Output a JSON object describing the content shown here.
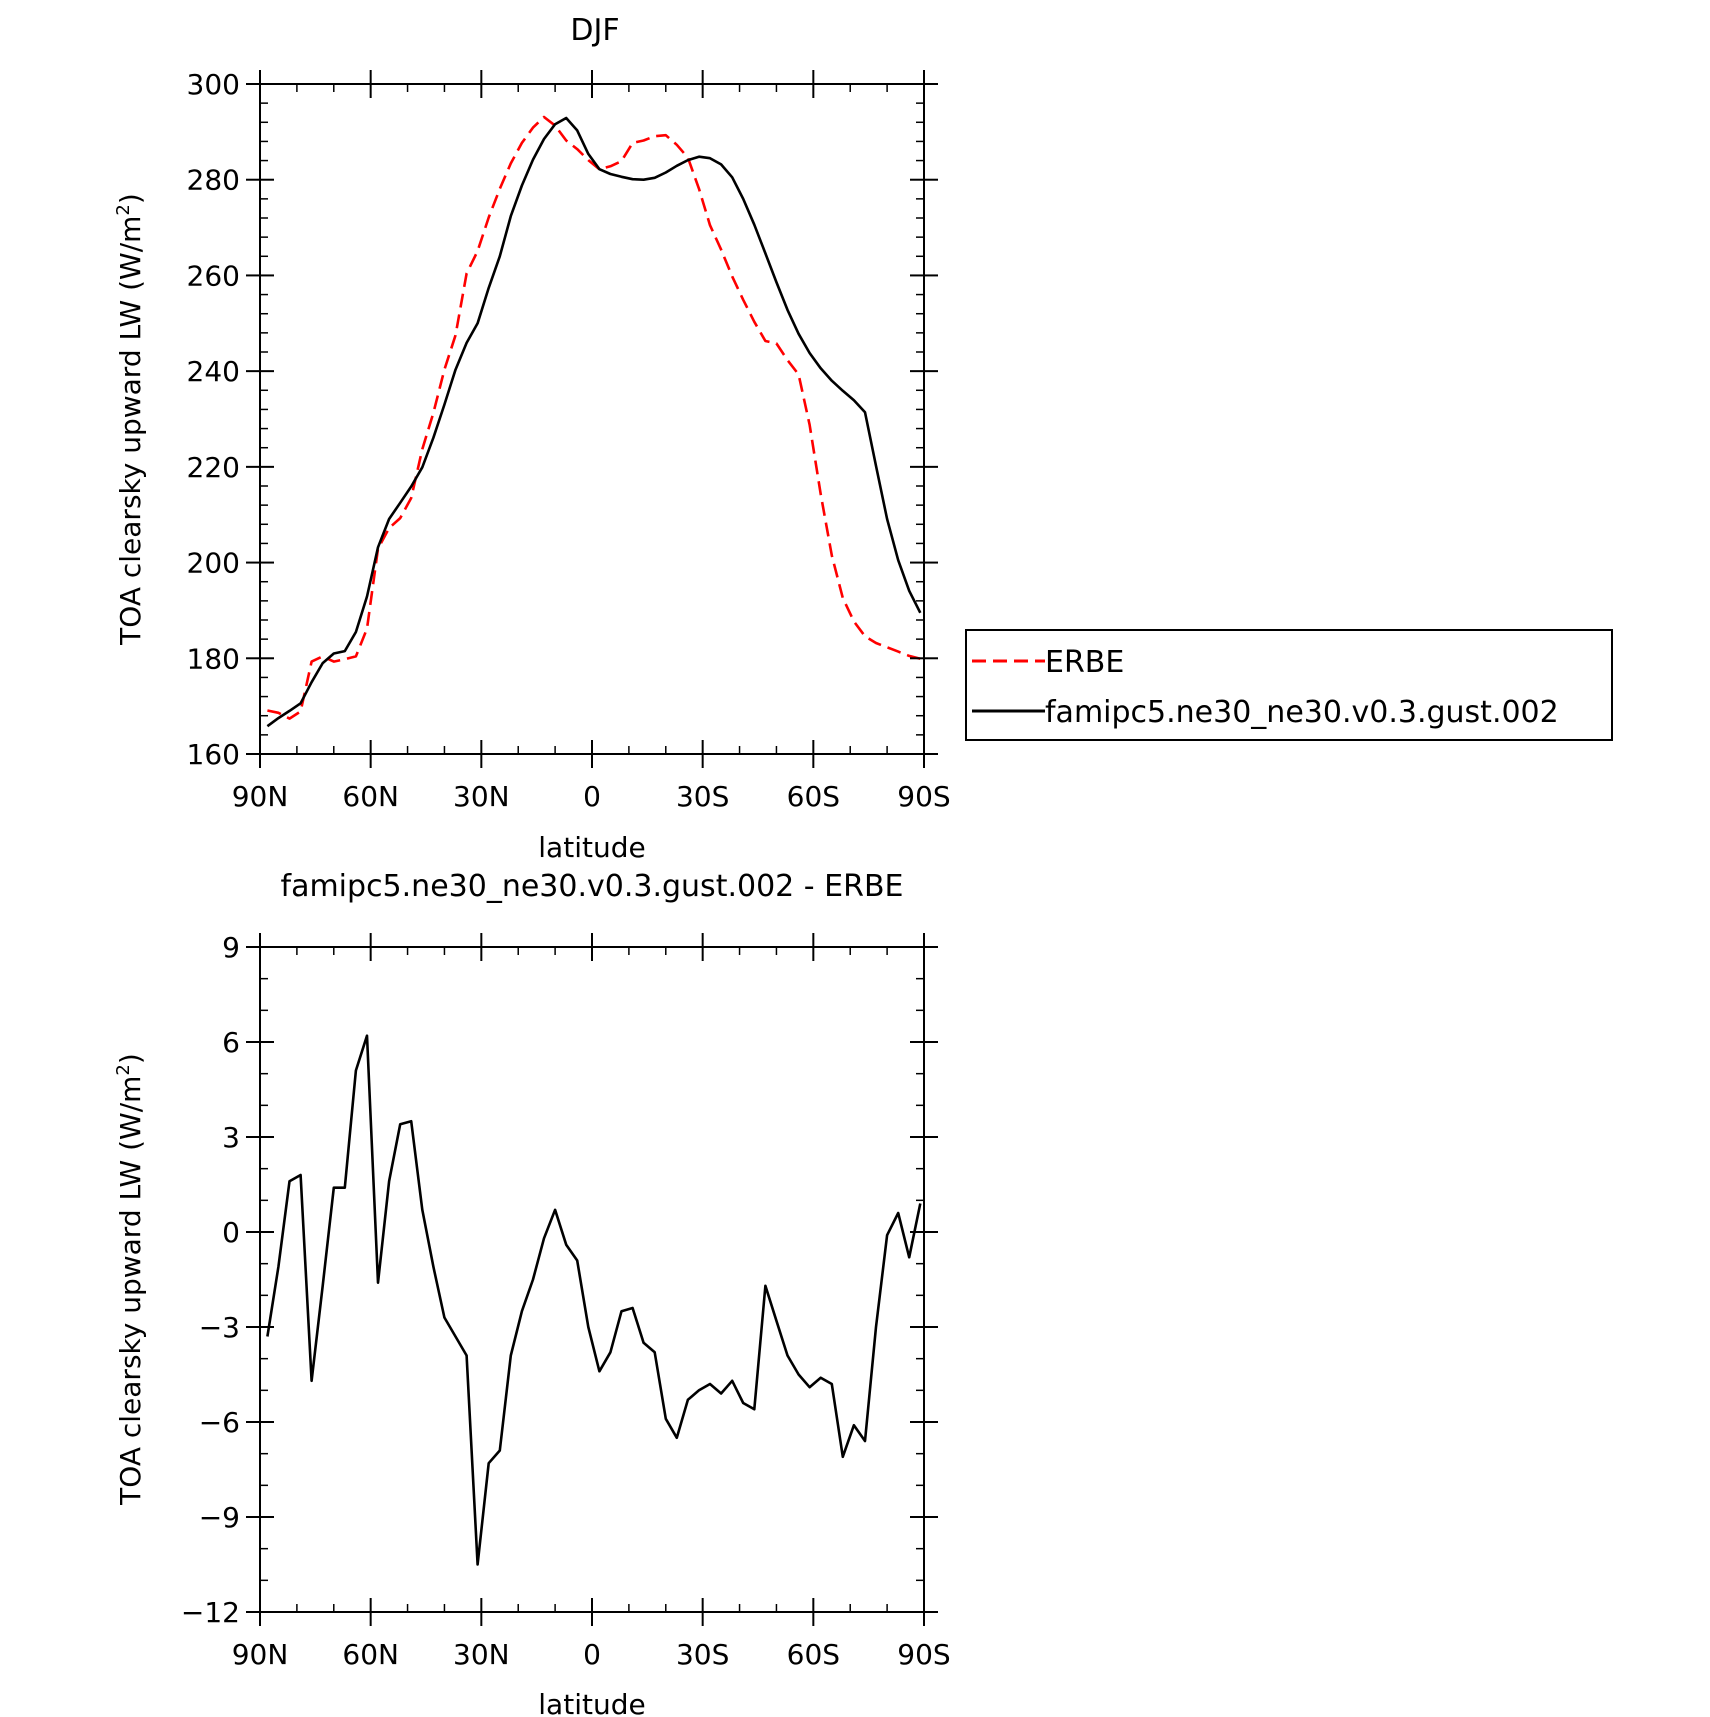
{
  "chart_data": [
    {
      "type": "line",
      "title": "DJF",
      "xlabel": "latitude",
      "ylabel_main": "TOA clearsky upward LW (W/m",
      "ylabel_sup": "2",
      "ylabel_close": ")",
      "xlim": [
        90,
        -90
      ],
      "ylim": [
        160,
        300
      ],
      "x_ticks": [
        90,
        60,
        30,
        0,
        -30,
        -60,
        -90
      ],
      "x_tick_labels": [
        "90N",
        "60N",
        "30N",
        "0",
        "30S",
        "60S",
        "90S"
      ],
      "y_ticks": [
        160,
        180,
        200,
        220,
        240,
        260,
        280,
        300
      ],
      "y_tick_labels": [
        "160",
        "180",
        "200",
        "220",
        "240",
        "260",
        "280",
        "300"
      ],
      "legend": "right",
      "series": [
        {
          "name": "ERBE",
          "color": "#ff0000",
          "dash": "dashed",
          "x": [
            88,
            85,
            82,
            79,
            76,
            73,
            70,
            67,
            64,
            61,
            58,
            55,
            52,
            49,
            46,
            43,
            40,
            37,
            34,
            31,
            28,
            25,
            22,
            19,
            16,
            13,
            10,
            7,
            4,
            1,
            -2,
            -5,
            -8,
            -11,
            -14,
            -17,
            -20,
            -23,
            -26,
            -29,
            -32,
            -35,
            -38,
            -41,
            -44,
            -47,
            -50,
            -53,
            -56,
            -59,
            -62,
            -65,
            -68,
            -71,
            -74,
            -77,
            -80,
            -83,
            -86,
            -89
          ],
          "y": [
            169.1,
            168.6,
            167.4,
            168.9,
            179.3,
            180.4,
            179.3,
            179.8,
            180.4,
            186.2,
            202.9,
            207.2,
            209.3,
            213.5,
            223.7,
            231.3,
            240.3,
            247.5,
            260.4,
            265.1,
            272.1,
            278.1,
            283.4,
            287.7,
            290.9,
            293.1,
            291.3,
            288.2,
            286.4,
            284.1,
            282.2,
            282.8,
            283.9,
            287.7,
            288.2,
            289.1,
            289.3,
            287.3,
            284.6,
            278.1,
            270.5,
            265.4,
            259.8,
            254.9,
            250.3,
            246.3,
            245.8,
            242.3,
            239.3,
            228.8,
            214.3,
            201.5,
            192.6,
            187.7,
            184.6,
            183.2,
            182.3,
            181.4,
            180.5,
            179.9
          ]
        },
        {
          "name": "famipc5.ne30_ne30.v0.3.gust.002",
          "color": "#000000",
          "dash": "solid",
          "x": [
            88,
            85,
            82,
            79,
            76,
            73,
            70,
            67,
            64,
            61,
            58,
            55,
            52,
            49,
            46,
            43,
            40,
            37,
            34,
            31,
            28,
            25,
            22,
            19,
            16,
            13,
            10,
            7,
            4,
            1,
            -2,
            -5,
            -8,
            -11,
            -14,
            -17,
            -20,
            -23,
            -26,
            -29,
            -32,
            -35,
            -38,
            -41,
            -44,
            -47,
            -50,
            -53,
            -56,
            -59,
            -62,
            -65,
            -68,
            -71,
            -74,
            -77,
            -80,
            -83,
            -86,
            -89
          ],
          "y": [
            165.8,
            167.5,
            169.0,
            170.6,
            175.0,
            179.0,
            181.0,
            181.5,
            185.5,
            192.9,
            203.2,
            209.1,
            212.5,
            215.9,
            219.9,
            226.1,
            233.0,
            240.3,
            245.9,
            250.0,
            257.4,
            264.0,
            272.4,
            278.8,
            284.2,
            288.5,
            291.6,
            292.9,
            290.3,
            285.4,
            282.2,
            281.2,
            280.6,
            280.1,
            280.0,
            280.4,
            281.5,
            282.9,
            284.1,
            284.8,
            284.5,
            283.2,
            280.5,
            276.0,
            270.6,
            264.6,
            258.6,
            252.8,
            247.8,
            243.8,
            240.6,
            238.0,
            235.9,
            233.9,
            231.4,
            220.2,
            209.1,
            200.5,
            194.1,
            189.5
          ]
        }
      ]
    },
    {
      "type": "line",
      "title": "famipc5.ne30_ne30.v0.3.gust.002 - ERBE",
      "xlabel": "latitude",
      "ylabel_main": "TOA clearsky upward LW (W/m",
      "ylabel_sup": "2",
      "ylabel_close": ")",
      "xlim": [
        90,
        -90
      ],
      "ylim": [
        -12,
        9
      ],
      "x_ticks": [
        90,
        60,
        30,
        0,
        -30,
        -60,
        -90
      ],
      "x_tick_labels": [
        "90N",
        "60N",
        "30N",
        "0",
        "30S",
        "60S",
        "90S"
      ],
      "y_ticks": [
        -12,
        -9,
        -6,
        -3,
        0,
        3,
        6,
        9
      ],
      "y_tick_labels": [
        "−12",
        "−9",
        "−6",
        "−3",
        "0",
        "3",
        "6",
        "9"
      ],
      "series": [
        {
          "color": "#000000",
          "dash": "solid",
          "x": [
            88,
            85,
            82,
            79,
            76,
            73,
            70,
            67,
            64,
            61,
            58,
            55,
            52,
            49,
            46,
            43,
            40,
            37,
            34,
            31,
            28,
            25,
            22,
            19,
            16,
            13,
            10,
            7,
            4,
            1,
            -2,
            -5,
            -8,
            -11,
            -14,
            -17,
            -20,
            -23,
            -26,
            -29,
            -32,
            -35,
            -38,
            -41,
            -44,
            -47,
            -50,
            -53,
            -56,
            -59,
            -62,
            -65,
            -68,
            -71,
            -74,
            -77,
            -80,
            -83,
            -86,
            -89
          ],
          "y": [
            -3.3,
            -1.1,
            1.6,
            1.8,
            -4.7,
            -1.7,
            1.4,
            1.4,
            5.1,
            6.2,
            -1.6,
            1.6,
            3.4,
            3.5,
            0.7,
            -1.1,
            -2.7,
            -3.3,
            -3.9,
            -10.5,
            -7.3,
            -6.9,
            -3.9,
            -2.5,
            -1.5,
            -0.2,
            0.7,
            -0.4,
            -0.9,
            -3.0,
            -4.4,
            -3.8,
            -2.5,
            -2.4,
            -3.5,
            -3.8,
            -5.9,
            -6.5,
            -5.3,
            -5.0,
            -4.8,
            -5.1,
            -4.7,
            -5.4,
            -5.6,
            -1.7,
            -2.8,
            -3.9,
            -4.5,
            -4.9,
            -4.6,
            -4.8,
            -7.1,
            -6.1,
            -6.6,
            -3.0,
            -0.1,
            0.6,
            -0.8,
            0.9
          ]
        }
      ]
    }
  ]
}
